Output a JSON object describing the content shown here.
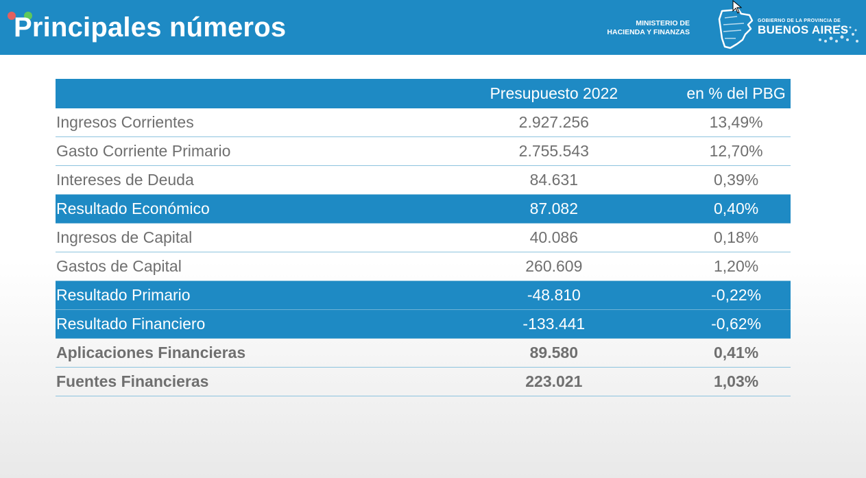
{
  "header": {
    "title": "Principales números",
    "ministry_line1": "MINISTERIO DE",
    "ministry_line2": "HACIENDA Y FINANZAS",
    "gob_small": "GOBIERNO DE LA PROVINCIA DE",
    "gob_big": "BUENOS AIRES",
    "map_icon": "province-map-icon",
    "cursor_icon": "mouse-pointer-icon",
    "color": "#1e8ac4"
  },
  "table": {
    "columns": [
      "",
      "Presupuesto 2022",
      "en % del PBG"
    ],
    "rows": [
      {
        "label": "Ingresos Corrientes",
        "value": "2.927.256",
        "pct": "13,49%",
        "style": "normal"
      },
      {
        "label": "Gasto Corriente Primario",
        "value": "2.755.543",
        "pct": "12,70%",
        "style": "normal"
      },
      {
        "label": "Intereses de Deuda",
        "value": "84.631",
        "pct": "0,39%",
        "style": "normal"
      },
      {
        "label": "Resultado Económico",
        "value": "87.082",
        "pct": "0,40%",
        "style": "highlight"
      },
      {
        "label": "Ingresos de Capital",
        "value": "40.086",
        "pct": "0,18%",
        "style": "normal"
      },
      {
        "label": "Gastos de Capital",
        "value": "260.609",
        "pct": "1,20%",
        "style": "normal"
      },
      {
        "label": "Resultado Primario",
        "value": "-48.810",
        "pct": "-0,22%",
        "style": "highlight"
      },
      {
        "label": "Resultado Financiero",
        "value": "-133.441",
        "pct": "-0,62%",
        "style": "highlight"
      },
      {
        "label": "Aplicaciones Financieras",
        "value": "89.580",
        "pct": "0,41%",
        "style": "bold"
      },
      {
        "label": "Fuentes Financieras",
        "value": "223.021",
        "pct": "1,03%",
        "style": "bold"
      }
    ]
  }
}
